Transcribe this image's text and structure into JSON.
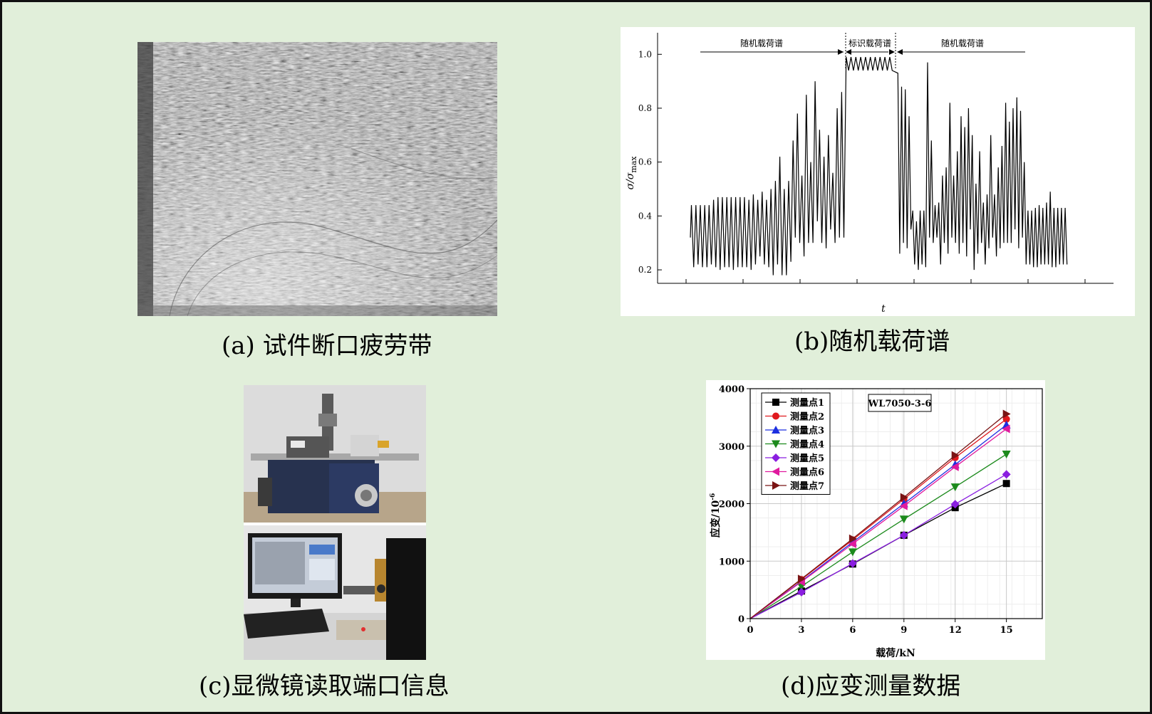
{
  "captions": {
    "a": "(a) 试件断口疲劳带",
    "b": "(b)随机载荷谱",
    "c": "(c)显微镜读取端口信息",
    "d": "(d)应变测量数据"
  },
  "chart_data": [
    {
      "type": "line",
      "ylabel": "σ/σmax",
      "ylabel_base": "σ/σ",
      "ylabel_sub": "max",
      "xlabel": "t",
      "ylim": [
        0.15,
        1.08
      ],
      "yticks": [
        "0.2",
        "0.4",
        "0.6",
        "0.8",
        "1.0"
      ],
      "annotations": [
        "随机载荷谱",
        "标识载荷谱",
        "随机载荷谱"
      ],
      "segments": [
        {
          "name": "随机载荷谱",
          "peaks": [
            0.44,
            0.44,
            0.44,
            0.44,
            0.44,
            0.46,
            0.47,
            0.47,
            0.47,
            0.47,
            0.47,
            0.47,
            0.47,
            0.46,
            0.48,
            0.46,
            0.49,
            0.46,
            0.5,
            0.53,
            0.62,
            0.5,
            0.53,
            0.68,
            0.78,
            0.55,
            0.85,
            0.6,
            0.9,
            0.72,
            0.62,
            0.7,
            0.56,
            0.8,
            0.86
          ],
          "valleys": [
            0.21,
            0.22,
            0.21,
            0.21,
            0.22,
            0.21,
            0.2,
            0.21,
            0.21,
            0.2,
            0.21,
            0.21,
            0.21,
            0.2,
            0.22,
            0.25,
            0.22,
            0.21,
            0.18,
            0.22,
            0.18,
            0.18,
            0.23,
            0.32,
            0.3,
            0.25,
            0.3,
            0.3,
            0.38,
            0.3,
            0.28,
            0.35,
            0.3,
            0.32,
            0.32
          ]
        },
        {
          "name": "标识载荷谱",
          "peaks": [
            0.99,
            0.99,
            0.99,
            0.99,
            0.99,
            0.99,
            0.99,
            0.99,
            0.99,
            0.99
          ],
          "valleys": [
            0.94,
            0.94,
            0.94,
            0.94,
            0.94,
            0.94,
            0.94,
            0.94,
            0.94,
            0.94
          ]
        },
        {
          "name": "随机载荷谱",
          "peaks": [
            0.93,
            0.88,
            0.87,
            0.77,
            0.42,
            0.38,
            0.42,
            0.42,
            0.97,
            0.68,
            0.44,
            0.45,
            0.55,
            0.58,
            0.82,
            0.55,
            0.64,
            0.77,
            0.73,
            0.8,
            0.7,
            0.52,
            0.64,
            0.45,
            0.48,
            0.7,
            0.48,
            0.58,
            0.66,
            0.82,
            0.75,
            0.8,
            0.84,
            0.79,
            0.6,
            0.42,
            0.42,
            0.43,
            0.44,
            0.43,
            0.45,
            0.49,
            0.43,
            0.43,
            0.43,
            0.43
          ],
          "valleys": [
            0.26,
            0.3,
            0.28,
            0.35,
            0.22,
            0.2,
            0.22,
            0.21,
            0.32,
            0.3,
            0.32,
            0.22,
            0.3,
            0.26,
            0.32,
            0.3,
            0.26,
            0.3,
            0.25,
            0.35,
            0.2,
            0.26,
            0.3,
            0.22,
            0.28,
            0.32,
            0.25,
            0.28,
            0.3,
            0.3,
            0.3,
            0.35,
            0.28,
            0.32,
            0.22,
            0.22,
            0.21,
            0.21,
            0.22,
            0.22,
            0.22,
            0.21,
            0.21,
            0.22,
            0.22,
            0.22
          ]
        }
      ]
    },
    {
      "type": "line",
      "title": "WL7050-3-6",
      "xlabel": "载荷/kN",
      "ylabel": "应变/10",
      "ylabel_exp": "-6",
      "xlim": [
        0,
        17.1
      ],
      "ylim": [
        0,
        4000
      ],
      "xticks": [
        0,
        3,
        6,
        9,
        12,
        15
      ],
      "yticks": [
        0,
        1000,
        2000,
        3000,
        4000
      ],
      "x": [
        0,
        3,
        6,
        9,
        12,
        15
      ],
      "grid": true,
      "legend_position": "top-left",
      "series": [
        {
          "name": "测量点1",
          "color": "#000000",
          "marker": "square",
          "values": [
            0,
            480,
            950,
            1450,
            1930,
            2350
          ]
        },
        {
          "name": "测量点2",
          "color": "#e0191e",
          "marker": "circle",
          "values": [
            0,
            680,
            1370,
            2080,
            2800,
            3470
          ]
        },
        {
          "name": "测量点3",
          "color": "#1c2fe0",
          "marker": "triangle-up",
          "values": [
            0,
            650,
            1330,
            2000,
            2680,
            3370
          ]
        },
        {
          "name": "测量点4",
          "color": "#1c8a1c",
          "marker": "triangle-down",
          "values": [
            0,
            560,
            1160,
            1730,
            2290,
            2860
          ]
        },
        {
          "name": "测量点5",
          "color": "#8a1ee0",
          "marker": "diamond",
          "values": [
            0,
            460,
            960,
            1450,
            1990,
            2510
          ]
        },
        {
          "name": "测量点6",
          "color": "#e01a9e",
          "marker": "triangle-left",
          "values": [
            0,
            640,
            1300,
            1960,
            2640,
            3300
          ]
        },
        {
          "name": "测量点7",
          "color": "#7a1414",
          "marker": "triangle-right",
          "values": [
            0,
            690,
            1390,
            2110,
            2840,
            3560
          ]
        }
      ]
    }
  ]
}
